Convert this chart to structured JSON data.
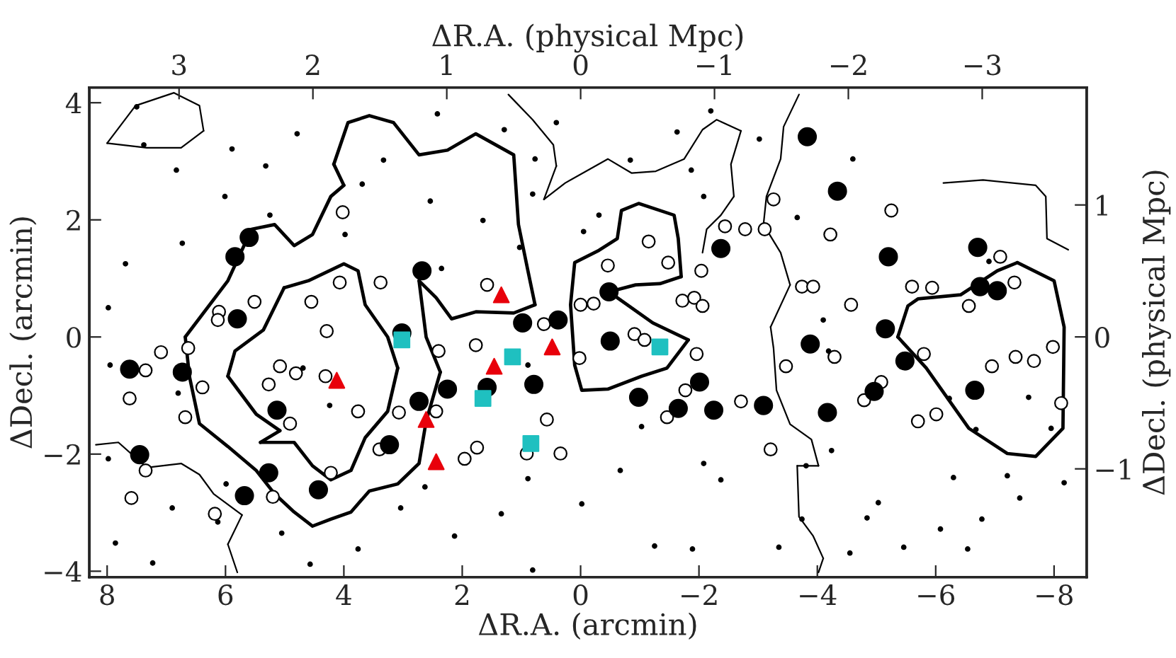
{
  "chart_data": {
    "type": "scatter",
    "xlabel": "ΔR.A. (arcmin)",
    "ylabel": "ΔDecl. (arcmin)",
    "x2label": "ΔR.A. (physical Mpc)",
    "y2label": "ΔDecl. (physical Mpc)",
    "xlim": [
      8.3,
      -8.55
    ],
    "xticks": [
      8,
      6,
      4,
      2,
      0,
      {
        "value": -2,
        "label": "−2"
      },
      {
        "value": -4,
        "label": "−4"
      },
      {
        "value": -6,
        "label": "−6"
      },
      {
        "value": -8,
        "label": "−8"
      }
    ],
    "ylim": [
      -4.1,
      4.26
    ],
    "yticks": [
      {
        "value": -4,
        "label": "−4"
      },
      {
        "value": -2,
        "label": "−2"
      },
      0,
      2,
      4
    ],
    "x2lim": [
      3.67,
      -3.78
    ],
    "x2ticks": [
      3,
      2,
      1,
      0,
      {
        "value": -1,
        "label": "−1"
      },
      {
        "value": -2,
        "label": "−2"
      },
      {
        "value": -3,
        "label": "−3"
      }
    ],
    "y2lim": [
      -1.82,
      1.89
    ],
    "y2ticks": [
      {
        "value": -1,
        "label": "−1"
      },
      0,
      1
    ],
    "grid": false,
    "legend": false,
    "series": [
      {
        "type": "line",
        "color": "#000000",
        "marker": "none",
        "line_style": "solid",
        "x": [
          6.68,
          5.96,
          5.56,
          5.17,
          4.84,
          4.53,
          4.22,
          4.0
        ],
        "values": [
          0,
          0.96,
          1.84,
          1.92,
          1.56,
          1.75,
          2.4,
          2.59
        ]
      },
      {
        "type": "line",
        "color": "#000000",
        "marker": "none",
        "line_style": "solid",
        "x": [
          4.0,
          4.17
        ],
        "values": [
          2.59,
          2.95
        ]
      },
      {
        "type": "line",
        "color": "#000000",
        "marker": "none",
        "line_style": "solid",
        "x": [
          4.17,
          3.93,
          3.57,
          3.16,
          2.73,
          2.25,
          1.77,
          1.13,
          1.05,
          0.89,
          0.77
        ],
        "values": [
          2.95,
          3.66,
          3.78,
          3.66,
          3.11,
          3.19,
          3.47,
          3.11,
          1.92,
          1.13,
          0.55
        ]
      },
      {
        "type": "line",
        "color": "#000000",
        "marker": "none",
        "line_style": "solid",
        "x": [
          0.77,
          1.13,
          1.77,
          2.18,
          2.44,
          2.73
        ],
        "values": [
          0.55,
          0.41,
          0.43,
          0.31,
          0.67,
          0.96
        ]
      },
      {
        "type": "line",
        "color": "#000000",
        "marker": "none",
        "line_style": "solid",
        "x": [
          2.73,
          2.61,
          2.37
        ],
        "values": [
          0.96,
          0,
          -0.6
        ]
      },
      {
        "type": "line",
        "color": "#000000",
        "marker": "none",
        "line_style": "solid",
        "x": [
          2.37,
          2.61,
          2.73,
          3.09,
          3.57,
          3.88,
          4.22,
          4.53,
          4.84,
          5.17,
          5.48,
          5.96,
          6.44,
          6.61,
          6.68
        ],
        "values": [
          -0.6,
          -1.44,
          -2.16,
          -2.51,
          -2.63,
          -2.99,
          -3.11,
          -3.23,
          -2.99,
          -2.68,
          -2.28,
          -1.87,
          -1.48,
          -0.67,
          0
        ]
      },
      {
        "type": "line",
        "color": "#000000",
        "marker": "none",
        "line_style": "solid",
        "x": [
          5.01,
          4.6,
          4.0,
          3.76,
          3.64,
          3.26,
          3.09
        ],
        "values": [
          0.84,
          0.96,
          1.25,
          1.13,
          0.55,
          0,
          -0.53
        ]
      },
      {
        "type": "line",
        "color": "#000000",
        "marker": "none",
        "line_style": "solid",
        "x": [
          3.09,
          3.26,
          3.64,
          3.88,
          4.22,
          4.53,
          4.84,
          5.41
        ],
        "values": [
          -0.53,
          -1.27,
          -1.72,
          -2.28,
          -2.44,
          -2.2,
          -1.8,
          -1.8
        ]
      },
      {
        "type": "line",
        "color": "#000000",
        "marker": "none",
        "line_style": "solid",
        "x": [
          5.41,
          5.08
        ],
        "values": [
          -1.8,
          -1.6
        ]
      },
      {
        "type": "line",
        "color": "#000000",
        "marker": "none",
        "line_style": "solid",
        "x": [
          5.08,
          5.48,
          5.96
        ],
        "values": [
          -1.6,
          -1.32,
          -0.67
        ]
      },
      {
        "type": "line",
        "color": "#000000",
        "marker": "none",
        "line_style": "solid",
        "x": [
          5.96,
          5.84,
          5.36,
          5.01
        ],
        "values": [
          -0.67,
          -0.24,
          0.12,
          0.84
        ]
      },
      {
        "type": "line",
        "color": "#000000",
        "marker": "none",
        "line_style": "solid",
        "x": [
          -1.7,
          -1.34,
          -0.93,
          -0.48
        ],
        "values": [
          1.03,
          0.91,
          0.89,
          0.77
        ]
      },
      {
        "type": "line",
        "color": "#000000",
        "marker": "none",
        "line_style": "solid",
        "x": [
          -0.48,
          -1.22,
          -1.82
        ],
        "values": [
          0.77,
          0.24,
          -0.05
        ]
      },
      {
        "type": "line",
        "color": "#000000",
        "marker": "none",
        "line_style": "solid",
        "x": [
          -1.82,
          -1.46,
          -1.03,
          -0.46,
          -0.02,
          0.1,
          0.17,
          0.1,
          -0.31,
          -0.62,
          -0.69,
          -0.98,
          -1.58,
          -1.65,
          -1.7
        ],
        "values": [
          -0.05,
          -0.53,
          -0.67,
          -0.89,
          -0.91,
          -0.48,
          0.55,
          1.27,
          1.48,
          1.68,
          2.16,
          2.28,
          2.08,
          1.68,
          1.03
        ]
      },
      {
        "type": "line",
        "color": "#000000",
        "marker": "none",
        "line_style": "solid",
        "x": [
          -5.36,
          -5.53,
          -5.7,
          -6.42,
          -7.04,
          -7.38
        ],
        "values": [
          0,
          0.53,
          0.65,
          0.72,
          1.13,
          1.27
        ]
      },
      {
        "type": "line",
        "color": "#000000",
        "marker": "none",
        "line_style": "solid",
        "x": [
          -7.38,
          -8.0,
          -8.17,
          -8.15,
          -7.69,
          -7.21,
          -6.56,
          -5.84,
          -5.36
        ],
        "values": [
          1.27,
          0.96,
          0.17,
          -1.56,
          -2.04,
          -1.99,
          -1.56,
          -0.53,
          0
        ]
      },
      {
        "type": "line",
        "color": "#000000",
        "marker": "none",
        "line_style": "solid",
        "x": [
          -3.69,
          -3.43,
          -3.38,
          -3.14,
          -3.09
        ],
        "values": [
          4.14,
          3.59,
          3.04,
          2.4,
          1.92
        ]
      },
      {
        "type": "line",
        "color": "#000000",
        "marker": "none",
        "line_style": "solid",
        "x": [
          -3.09,
          -3.38,
          -3.54
        ],
        "values": [
          1.92,
          1.44,
          0.89
        ]
      },
      {
        "type": "line",
        "color": "#000000",
        "marker": "none",
        "line_style": "solid",
        "x": [
          -3.54,
          -3.21
        ],
        "values": [
          0.89,
          0.17
        ]
      },
      {
        "type": "line",
        "color": "#000000",
        "marker": "none",
        "line_style": "solid",
        "x": [
          -3.21,
          -3.26,
          -3.31,
          -3.54,
          -3.9,
          -4.02
        ],
        "values": [
          0.17,
          -0.19,
          -0.91,
          -1.49,
          -1.75,
          -2.2
        ]
      },
      {
        "type": "line",
        "color": "#000000",
        "marker": "none",
        "line_style": "solid",
        "x": [
          -4.02,
          -3.66
        ],
        "values": [
          -2.2,
          -2.2
        ]
      },
      {
        "type": "line",
        "color": "#000000",
        "marker": "none",
        "line_style": "solid",
        "x": [
          -3.66,
          -3.69,
          -3.93,
          -4.1
        ],
        "values": [
          -2.2,
          -3.07,
          -3.4,
          -3.78
        ]
      },
      {
        "type": "line",
        "color": "#000000",
        "marker": "none",
        "line_style": "solid",
        "x": [
          -4.1,
          -4.02
        ],
        "values": [
          -3.78,
          -4.02
        ]
      },
      {
        "type": "line",
        "color": "#000000",
        "marker": "none",
        "line_style": "solid",
        "x": [
          -6.13,
          -6.8,
          -7.69,
          -7.86,
          -7.88,
          -8.24
        ],
        "values": [
          2.63,
          2.68,
          2.59,
          2.4,
          1.68,
          1.49
        ]
      },
      {
        "type": "line",
        "color": "#000000",
        "marker": "none",
        "line_style": "solid",
        "x": [
          8.19,
          7.81,
          7.33,
          6.75,
          6.44,
          6.2,
          5.72
        ],
        "values": [
          -1.84,
          -1.8,
          -2.23,
          -2.16,
          -2.35,
          -2.68,
          -3.04
        ]
      },
      {
        "type": "line",
        "color": "#000000",
        "marker": "none",
        "line_style": "solid",
        "x": [
          5.72,
          5.96
        ],
        "values": [
          -3.04,
          -3.54
        ]
      },
      {
        "type": "line",
        "color": "#000000",
        "marker": "none",
        "line_style": "solid",
        "x": [
          5.96,
          5.8
        ],
        "values": [
          -3.54,
          -4.02
        ]
      },
      {
        "type": "line",
        "color": "#000000",
        "marker": "none",
        "line_style": "solid",
        "x": [
          1.22,
          0.81,
          0.46,
          0.41
        ],
        "values": [
          4.14,
          3.71,
          3.28,
          2.92
        ]
      },
      {
        "type": "line",
        "color": "#000000",
        "marker": "none",
        "line_style": "solid",
        "x": [
          0.41,
          0.62
        ],
        "values": [
          2.92,
          2.35
        ]
      },
      {
        "type": "line",
        "color": "#000000",
        "marker": "none",
        "line_style": "solid",
        "x": [
          0.62,
          0.26,
          -0.46,
          -0.86,
          -1.27,
          -1.75,
          -2.06,
          -2.3,
          -2.71
        ],
        "values": [
          2.35,
          2.63,
          3.04,
          2.8,
          2.83,
          3.04,
          3.54,
          3.71,
          3.52
        ]
      },
      {
        "type": "line",
        "color": "#000000",
        "marker": "none",
        "line_style": "solid",
        "x": [
          -2.71,
          -2.54,
          -2.59
        ],
        "values": [
          3.52,
          2.95,
          2.4
        ]
      },
      {
        "type": "line",
        "color": "#000000",
        "marker": "none",
        "line_style": "solid",
        "x": [
          -2.59,
          -2.37,
          -2.13,
          -2.06
        ],
        "values": [
          2.4,
          2.08,
          1.84,
          1.44
        ]
      },
      {
        "type": "line",
        "color": "#000000",
        "marker": "none",
        "line_style": "solid",
        "x": [
          8.0,
          7.52,
          6.87,
          6.44,
          6.37
        ],
        "values": [
          3.31,
          3.95,
          4.17,
          3.95,
          3.52
        ]
      },
      {
        "type": "line",
        "color": "#000000",
        "marker": "none",
        "line_style": "solid",
        "x": [
          6.37,
          6.75,
          7.33,
          8.0
        ],
        "values": [
          3.52,
          3.23,
          3.23,
          3.31
        ]
      },
      {
        "color": "#000000",
        "marker": "circle",
        "x": [
          7.5,
          7.38,
          6.83,
          5.89,
          4.79,
          5.32,
          6.01,
          5.25,
          6.73,
          7.69,
          7.98,
          3.33,
          3.69,
          3.98,
          2.42,
          1.29,
          0.41,
          0.77,
          -0.84,
          -1.87,
          -1.63,
          -2.2,
          0.81,
          1.65,
          2.54,
          -0.31,
          -2.08,
          1.03,
          -0.05,
          2.35,
          -3.02,
          -4.6,
          -3.66,
          -4.1,
          -6.9,
          7.95,
          6.8,
          7.98,
          5.99,
          6.9,
          7.86,
          7.23,
          6.13,
          5.05,
          4.57,
          3.76,
          3.04,
          4.69,
          4.24,
          0.89,
          -1.03,
          0.89,
          -0.02,
          1.34,
          -0.67,
          -1.25,
          -1.89,
          -2.08,
          -2.37,
          2.13,
          2.63,
          0.81,
          -4.19,
          -6.23,
          -6.68,
          -4.24,
          -3.81,
          -5.03,
          -3.74,
          -4.84,
          -4.55,
          -3.35,
          -6.08,
          -6.3,
          -7.21,
          -7.42,
          -6.78,
          -6.54,
          -7.95,
          -8.17,
          -5.46,
          -7.57
        ],
        "values": [
          3.93,
          3.28,
          2.85,
          3.21,
          3.47,
          2.92,
          2.4,
          2.08,
          1.6,
          1.25,
          0.5,
          3.02,
          2.61,
          1.75,
          3.81,
          3.54,
          3.66,
          3.04,
          3.02,
          2.85,
          3.5,
          3.86,
          2.44,
          1.99,
          2.32,
          2.08,
          2.4,
          1.53,
          1.8,
          1.17,
          3.38,
          3.04,
          2.04,
          0.29,
          1.29,
          -0.48,
          -0.96,
          -2.08,
          -2.51,
          -2.92,
          -3.52,
          -3.86,
          -3.16,
          -3.35,
          -3.88,
          -3.62,
          -2.92,
          -0.53,
          -1.17,
          -0.48,
          -1.53,
          -2.42,
          -2.85,
          -3.02,
          -2.28,
          -3.57,
          -3.62,
          -2.16,
          -2.44,
          -3.4,
          -2.56,
          -3.98,
          -0.24,
          -1.05,
          -1.58,
          -1.94,
          -2.2,
          -2.83,
          -3.11,
          -3.09,
          -3.69,
          -3.59,
          -3.28,
          -2.4,
          -2.37,
          -2.75,
          -3.11,
          -3.62,
          -1.56,
          -2.49,
          -3.59,
          -1.03
        ]
      },
      {
        "color": "#000000",
        "marker": "circle",
        "x": [
          4.02,
          4.07,
          3.38,
          5.51,
          4.55,
          6.11,
          6.13,
          4.29,
          1.58,
          0.62,
          -1.15,
          -1.48,
          -0.46,
          -2.04,
          -2.44,
          -2.78,
          0,
          -0.22,
          -1.72,
          -1.92,
          -2.06,
          -0.91,
          -3.26,
          -3.11,
          -5.25,
          -4.22,
          -3.74,
          -3.93,
          -4.57,
          -5.6,
          -5.94,
          -6.56,
          -7.09,
          -7.33,
          7.09,
          6.63,
          7.35,
          7.62,
          6.39,
          6.68,
          5.08,
          4.81,
          5.27,
          4.91,
          4.31,
          3.76,
          3.07,
          3.4,
          7.35,
          7.59,
          5.2,
          6.18,
          4.22,
          2.4,
          1.77,
          -1.08,
          0.02,
          -1.96,
          -1.77,
          -1.46,
          -2.71,
          2.44,
          0.57,
          1.96,
          1.75,
          0.91,
          0.34,
          -4.29,
          -3.47,
          -5.8,
          -5.08,
          -4.79,
          -5.7,
          -6.01,
          -3.21,
          -6.95,
          -7.35,
          -7.66,
          -7.98,
          -8.12
        ],
        "values": [
          2.13,
          0.93,
          0.93,
          0.6,
          0.6,
          0.43,
          0.29,
          0.1,
          0.89,
          0.22,
          1.63,
          1.27,
          1.22,
          1.13,
          1.89,
          1.84,
          0.55,
          0.57,
          0.62,
          0.67,
          0.53,
          0.05,
          2.35,
          1.84,
          2.16,
          1.75,
          0.86,
          0.86,
          0.55,
          0.86,
          0.84,
          0.53,
          1.37,
          0.93,
          -0.26,
          -0.19,
          -0.57,
          -1.05,
          -0.86,
          -1.37,
          -0.5,
          -0.62,
          -0.81,
          -1.48,
          -0.67,
          -1.27,
          -1.29,
          -1.92,
          -2.28,
          -2.75,
          -2.73,
          -3.02,
          -2.32,
          -0.24,
          -0.14,
          -0.05,
          -0.36,
          -0.29,
          -0.91,
          -1.37,
          -1.1,
          -1.27,
          -1.41,
          -2.08,
          -1.89,
          -1.99,
          -1.99,
          -0.34,
          -0.5,
          -0.29,
          -0.77,
          -1.08,
          -1.44,
          -1.32,
          -1.92,
          -0.5,
          -0.34,
          -0.41,
          -0.17,
          -1.13
        ]
      },
      {
        "color": "#000000",
        "marker": "circle",
        "x": [
          5.6,
          5.84,
          5.8,
          2.68,
          0.98,
          0.38,
          -0.48,
          -2.37,
          -3.83,
          -4.34,
          -5.2,
          -6.71,
          -6.75,
          -7.04,
          -5.15,
          7.62,
          6.73,
          5.13,
          7.45,
          5.27,
          5.68,
          4.43,
          3.23,
          2.73,
          3.02,
          -0.5,
          0.79,
          1.58,
          2.25,
          -0.98,
          -1.65,
          -2.01,
          -2.25,
          -3.88,
          -3.09,
          -4.17,
          -4.96,
          -5.48,
          -6.66
        ],
        "values": [
          1.7,
          1.37,
          0.31,
          1.13,
          0.24,
          0.29,
          0.77,
          1.51,
          3.42,
          2.49,
          1.37,
          1.53,
          0.86,
          0.79,
          0.14,
          -0.55,
          -0.6,
          -1.25,
          -2.01,
          -2.32,
          -2.71,
          -2.61,
          -1.84,
          -1.1,
          0.07,
          -0.07,
          -0.81,
          -0.86,
          -0.89,
          -1.03,
          -1.22,
          -0.77,
          -1.25,
          -0.12,
          -1.17,
          -1.29,
          -0.93,
          -0.41,
          -0.91
        ]
      },
      {
        "color": "#e8000b",
        "marker": "triangle",
        "x": [
          1.34,
          0.48,
          1.46,
          2.61,
          2.44,
          4.12
        ],
        "values": [
          0.72,
          -0.17,
          -0.5,
          -1.41,
          -2.13,
          -0.74
        ]
      },
      {
        "color": "#1fc0c0",
        "marker": "square",
        "x": [
          3.02,
          1.15,
          1.65,
          0.84,
          -1.34
        ],
        "values": [
          -0.05,
          -0.34,
          -1.05,
          -1.82,
          -0.17
        ]
      }
    ]
  }
}
